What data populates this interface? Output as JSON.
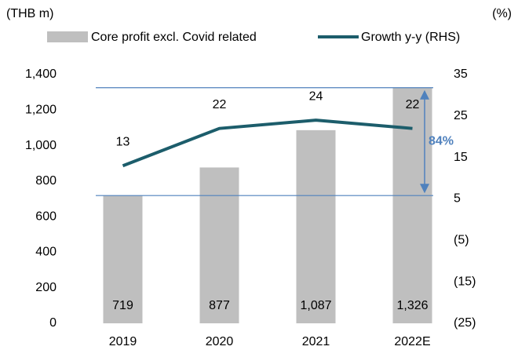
{
  "chart_data": {
    "type": "bar_line",
    "y_unit_label": "(THB m)",
    "y2_unit_label": "(%)",
    "categories": [
      "2019",
      "2020",
      "2021",
      "2022E"
    ],
    "series": [
      {
        "name": "Core profit excl. Covid related",
        "type": "bar",
        "color": "#bfbfbf",
        "values": [
          719,
          877,
          1087,
          1326
        ],
        "value_labels": [
          "719",
          "877",
          "1,087",
          "1,326"
        ]
      },
      {
        "name": "Growth y-y (RHS)",
        "type": "line",
        "axis": "y2",
        "color": "#1c5d6b",
        "values": [
          13,
          22,
          24,
          22
        ]
      }
    ],
    "ylim": [
      0,
      1400
    ],
    "yticks": [
      0,
      200,
      400,
      600,
      800,
      {
        "value": 1000,
        "label": "1,000"
      },
      {
        "value": 1200,
        "label": "1,200"
      },
      {
        "value": 1400,
        "label": "1,400"
      }
    ],
    "y2lim": [
      -25,
      35
    ],
    "y2ticks": [
      {
        "value": -25,
        "label": "(25)"
      },
      {
        "value": -15,
        "label": "(15)"
      },
      {
        "value": -5,
        "label": "(5)"
      },
      5,
      15,
      25,
      35
    ],
    "annotation": {
      "text": "84%",
      "color": "#4f81bd"
    },
    "grid": false
  }
}
